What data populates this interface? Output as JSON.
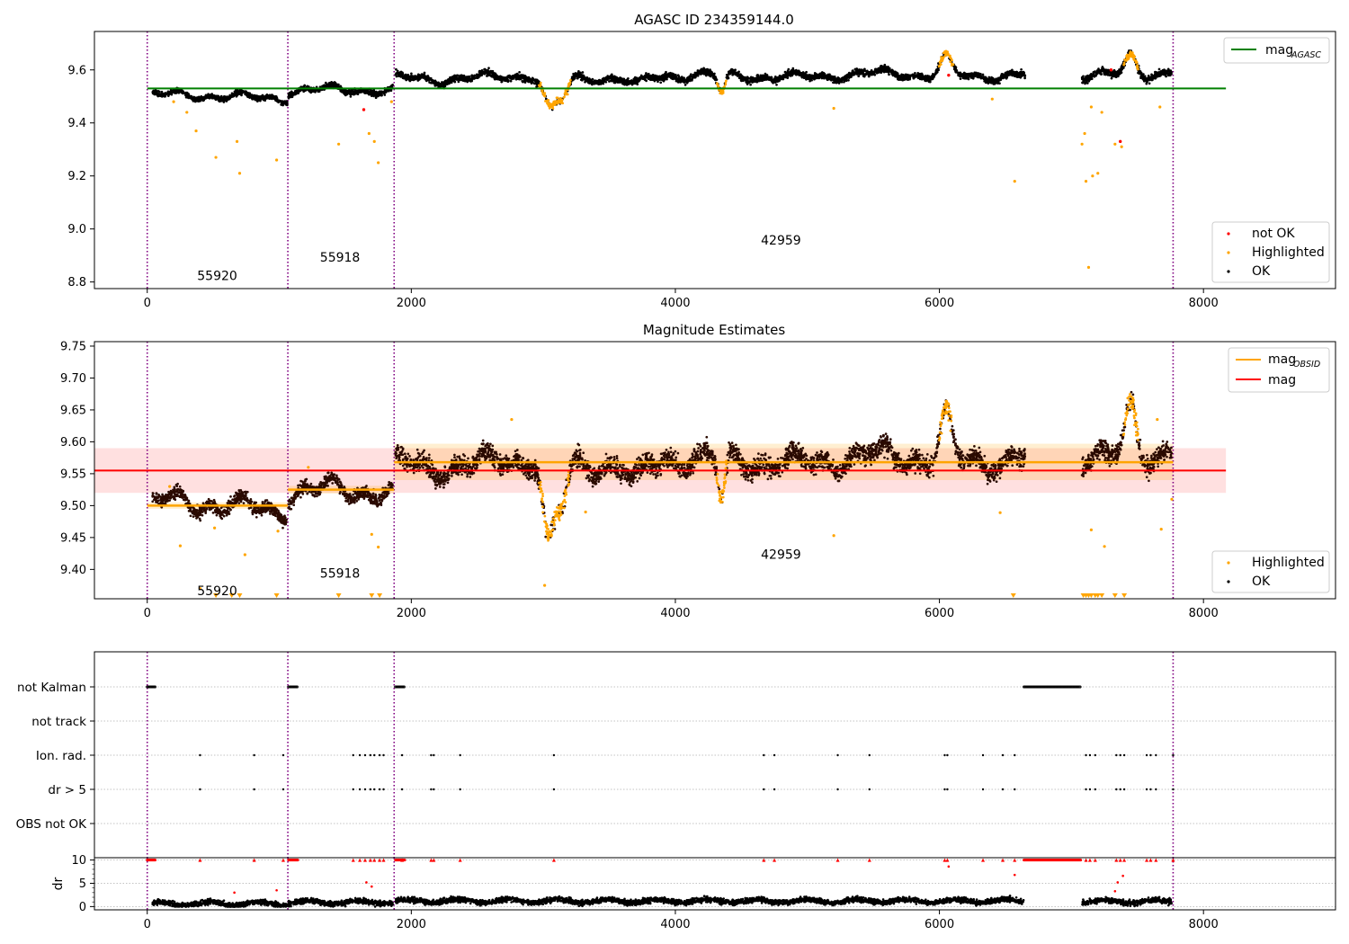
{
  "chart_data": [
    {
      "id": "top",
      "type": "scatter",
      "title": "AGASC ID 234359144.0",
      "xlabel": "",
      "ylabel": "",
      "xlim": [
        -400,
        9000
      ],
      "ylim": [
        8.775,
        9.745
      ],
      "xticks": [
        0,
        2000,
        4000,
        6000,
        8000
      ],
      "xtick_labels": [
        "0",
        "2000",
        "4000",
        "6000",
        "8000"
      ],
      "yticks": [
        8.8,
        9.0,
        9.2,
        9.4,
        9.6
      ],
      "ytick_labels": [
        "8.8",
        "9.0",
        "9.2",
        "9.4",
        "9.6"
      ],
      "obs_boundaries": [
        0,
        1065,
        1870,
        7770
      ],
      "obs_labels": [
        {
          "text": "55920",
          "x": 530,
          "y": 8.82
        },
        {
          "text": "55918",
          "x": 1460,
          "y": 8.89
        },
        {
          "text": "42959",
          "x": 4800,
          "y": 8.955
        }
      ],
      "reference_lines": [
        {
          "name": "mag_AGASC",
          "y": 9.53,
          "x": [
            0,
            8170
          ],
          "color": "#008000"
        }
      ],
      "segments": [
        {
          "x0": 40,
          "x1": 1060,
          "level": 9.5,
          "trend": 0.0,
          "noise": 0.009
        },
        {
          "x0": 1070,
          "x1": 1860,
          "level": 9.525,
          "trend": -0.008,
          "noise": 0.01
        },
        {
          "x0": 1880,
          "x1": 6650,
          "level": 9.57,
          "trend": 0.012,
          "noise": 0.012
        },
        {
          "x0": 7080,
          "x1": 7760,
          "level": 9.575,
          "trend": 0.02,
          "noise": 0.013
        }
      ],
      "dips": [
        {
          "x": 3050,
          "width": 70,
          "depth": 0.12
        },
        {
          "x": 3150,
          "width": 60,
          "depth": 0.07
        },
        {
          "x": 4350,
          "width": 40,
          "depth": 0.07
        },
        {
          "x": 3700,
          "width": 80,
          "depth": 0.03
        }
      ],
      "bumps": [
        {
          "x": 6050,
          "width": 60,
          "height": 0.07
        },
        {
          "x": 7450,
          "width": 60,
          "height": 0.07
        }
      ],
      "gap": [
        6650,
        7080
      ],
      "outliers": [
        {
          "x": 200,
          "y": 9.48
        },
        {
          "x": 300,
          "y": 9.44
        },
        {
          "x": 370,
          "y": 9.37
        },
        {
          "x": 520,
          "y": 9.27
        },
        {
          "x": 680,
          "y": 9.33
        },
        {
          "x": 700,
          "y": 9.21
        },
        {
          "x": 980,
          "y": 9.26
        },
        {
          "x": 1450,
          "y": 9.32
        },
        {
          "x": 1680,
          "y": 9.36
        },
        {
          "x": 1720,
          "y": 9.33
        },
        {
          "x": 1750,
          "y": 9.25
        },
        {
          "x": 1850,
          "y": 9.48
        },
        {
          "x": 5200,
          "y": 9.455
        },
        {
          "x": 6400,
          "y": 9.49
        },
        {
          "x": 6570,
          "y": 9.18
        },
        {
          "x": 7080,
          "y": 9.32
        },
        {
          "x": 7100,
          "y": 9.36
        },
        {
          "x": 7110,
          "y": 9.18
        },
        {
          "x": 7130,
          "y": 8.855
        },
        {
          "x": 7150,
          "y": 9.46
        },
        {
          "x": 7160,
          "y": 9.2
        },
        {
          "x": 7200,
          "y": 9.21
        },
        {
          "x": 7230,
          "y": 9.44
        },
        {
          "x": 7330,
          "y": 9.32
        },
        {
          "x": 7380,
          "y": 9.31
        },
        {
          "x": 7670,
          "y": 9.46
        }
      ],
      "not_ok_points": [
        {
          "x": 1640,
          "y": 9.45
        },
        {
          "x": 6070,
          "y": 9.58
        },
        {
          "x": 7370,
          "y": 9.33
        },
        {
          "x": 7300,
          "y": 9.6
        }
      ],
      "legend_lines": {
        "position": "upper right",
        "entries": [
          {
            "label": "mag",
            "sub": "AGASC",
            "color": "#008000"
          }
        ]
      },
      "legend_points": {
        "position": "lower right",
        "entries": [
          {
            "label": "not OK",
            "color": "#ff0000"
          },
          {
            "label": "Highlighted",
            "color": "#ffa500"
          },
          {
            "label": "OK",
            "color": "#000000"
          }
        ]
      }
    },
    {
      "id": "middle",
      "type": "scatter",
      "title": "Magnitude Estimates",
      "xlabel": "",
      "ylabel": "",
      "xlim": [
        -400,
        9000
      ],
      "ylim": [
        9.354,
        9.757
      ],
      "xticks": [
        0,
        2000,
        4000,
        6000,
        8000
      ],
      "xtick_labels": [
        "0",
        "2000",
        "4000",
        "6000",
        "8000"
      ],
      "yticks": [
        9.4,
        9.45,
        9.5,
        9.55,
        9.6,
        9.65,
        9.7,
        9.75
      ],
      "ytick_labels": [
        "9.40",
        "9.45",
        "9.50",
        "9.55",
        "9.60",
        "9.65",
        "9.70",
        "9.75"
      ],
      "obs_boundaries": [
        0,
        1065,
        1870,
        7770
      ],
      "obs_labels": [
        {
          "text": "55920",
          "x": 530,
          "y": 9.365
        },
        {
          "text": "55918",
          "x": 1460,
          "y": 9.393
        },
        {
          "text": "42959",
          "x": 4800,
          "y": 9.422
        }
      ],
      "mag": {
        "y": 9.555,
        "band": [
          9.52,
          9.59
        ],
        "x": [
          -400,
          8170
        ],
        "color": "#ff0000"
      },
      "mag_obsid": [
        {
          "x": [
            0,
            1065
          ],
          "y": 9.5,
          "band": [
            9.495,
            9.505
          ]
        },
        {
          "x": [
            1065,
            1870
          ],
          "y": 9.525,
          "band": [
            9.519,
            9.531
          ]
        },
        {
          "x": [
            1870,
            7770
          ],
          "y": 9.568,
          "band": [
            9.54,
            9.597
          ]
        }
      ],
      "segments": [
        {
          "x0": 40,
          "x1": 1060,
          "level": 9.5,
          "trend": 0.0,
          "noise": 0.01
        },
        {
          "x0": 1070,
          "x1": 1860,
          "level": 9.525,
          "trend": -0.008,
          "noise": 0.01
        },
        {
          "x0": 1880,
          "x1": 6650,
          "level": 9.565,
          "trend": 0.01,
          "noise": 0.015
        },
        {
          "x0": 7080,
          "x1": 7760,
          "level": 9.57,
          "trend": 0.02,
          "noise": 0.016
        }
      ],
      "dips": [
        {
          "x": 3040,
          "width": 60,
          "depth": 0.13
        },
        {
          "x": 3140,
          "width": 60,
          "depth": 0.07
        },
        {
          "x": 4350,
          "width": 40,
          "depth": 0.07
        },
        {
          "x": 3700,
          "width": 80,
          "depth": 0.03
        }
      ],
      "bumps": [
        {
          "x": 6050,
          "width": 60,
          "height": 0.07
        },
        {
          "x": 7450,
          "width": 60,
          "height": 0.08
        }
      ],
      "gap": [
        6650,
        7080
      ],
      "outliers": [
        {
          "x": 170,
          "y": 9.53
        },
        {
          "x": 250,
          "y": 9.437
        },
        {
          "x": 400,
          "y": 9.37
        },
        {
          "x": 510,
          "y": 9.465
        },
        {
          "x": 740,
          "y": 9.423
        },
        {
          "x": 990,
          "y": 9.46
        },
        {
          "x": 1220,
          "y": 9.56
        },
        {
          "x": 1700,
          "y": 9.455
        },
        {
          "x": 1750,
          "y": 9.435
        },
        {
          "x": 3010,
          "y": 9.375
        },
        {
          "x": 3320,
          "y": 9.49
        },
        {
          "x": 5200,
          "y": 9.453
        },
        {
          "x": 6460,
          "y": 9.489
        },
        {
          "x": 7150,
          "y": 9.462
        },
        {
          "x": 7250,
          "y": 9.436
        },
        {
          "x": 7680,
          "y": 9.463
        },
        {
          "x": 7760,
          "y": 9.51
        },
        {
          "x": 2760,
          "y": 9.635
        },
        {
          "x": 7650,
          "y": 9.635
        }
      ],
      "clipped_low": [
        520,
        640,
        700,
        980,
        1450,
        1700,
        1760,
        6560,
        7090,
        7110,
        7130,
        7150,
        7180,
        7200,
        7230,
        7330,
        7400
      ],
      "legend_lines": {
        "position": "upper right",
        "entries": [
          {
            "label": "mag",
            "sub": "OBSID",
            "color": "#ffa500"
          },
          {
            "label": "mag",
            "sub": "",
            "color": "#ff0000"
          }
        ]
      },
      "legend_points": {
        "position": "lower right",
        "entries": [
          {
            "label": "Highlighted",
            "color": "#ffa500"
          },
          {
            "label": "OK",
            "color": "#000000"
          }
        ]
      }
    },
    {
      "id": "flags",
      "type": "scatter",
      "title": "",
      "xlabel": "",
      "ylabel": "",
      "xlim": [
        -400,
        9000
      ],
      "categories": [
        "not Kalman",
        "not track",
        "Ion. rad.",
        "dr > 5",
        "OBS not OK"
      ],
      "obs_boundaries": [
        0,
        1065,
        1870,
        7770
      ],
      "not_kalman_ranges": [
        [
          0,
          60
        ],
        [
          1070,
          1140
        ],
        [
          1880,
          1950
        ],
        [
          6640,
          7070
        ]
      ],
      "ion_rad_x": [
        400,
        810,
        1030,
        1560,
        1610,
        1650,
        1690,
        1720,
        1760,
        1790,
        1930,
        2150,
        2170,
        2370,
        3080,
        4670,
        4750,
        5230,
        5470,
        6040,
        6060,
        6330,
        6480,
        6570,
        7110,
        7140,
        7180,
        7340,
        7370,
        7400,
        7570,
        7600,
        7640,
        7770
      ],
      "dr5_x": [
        400,
        810,
        1030,
        1560,
        1610,
        1650,
        1690,
        1720,
        1760,
        1790,
        1930,
        2150,
        2170,
        2370,
        3080,
        4670,
        4750,
        5230,
        5470,
        6040,
        6060,
        6330,
        6480,
        6570,
        7110,
        7140,
        7180,
        7340,
        7370,
        7400,
        7570,
        7600,
        7640,
        7770
      ]
    },
    {
      "id": "dr",
      "type": "scatter",
      "title": "",
      "xlabel": "",
      "ylabel": "dr",
      "xlim": [
        -400,
        9000
      ],
      "ylim": [
        -0.7,
        10.5
      ],
      "yticks": [
        0,
        5,
        10
      ],
      "ytick_labels": [
        "0",
        "5",
        "10"
      ],
      "xticks": [
        0,
        2000,
        4000,
        6000,
        8000
      ],
      "xtick_labels": [
        "0",
        "2000",
        "4000",
        "6000",
        "8000"
      ],
      "obs_boundaries": [
        0,
        1065,
        1870,
        7770
      ],
      "capped_ranges": [
        [
          0,
          60
        ],
        [
          1070,
          1140
        ],
        [
          1880,
          1950
        ],
        [
          6640,
          7070
        ]
      ],
      "capped_x": [
        400,
        810,
        1030,
        1560,
        1610,
        1650,
        1690,
        1720,
        1760,
        1790,
        1930,
        2150,
        2170,
        2370,
        3080,
        4670,
        4750,
        5230,
        5470,
        6040,
        6060,
        6330,
        6480,
        6570,
        7110,
        7140,
        7180,
        7340,
        7370,
        7400,
        7570,
        7600,
        7640,
        7770
      ],
      "mid_points": [
        {
          "x": 1660,
          "y": 5.2
        },
        {
          "x": 1700,
          "y": 4.3
        },
        {
          "x": 6070,
          "y": 8.6
        },
        {
          "x": 6570,
          "y": 6.8
        },
        {
          "x": 7350,
          "y": 5.2
        },
        {
          "x": 7390,
          "y": 6.6
        },
        {
          "x": 7330,
          "y": 3.3
        },
        {
          "x": 980,
          "y": 3.5
        },
        {
          "x": 660,
          "y": 3.0
        }
      ]
    }
  ]
}
